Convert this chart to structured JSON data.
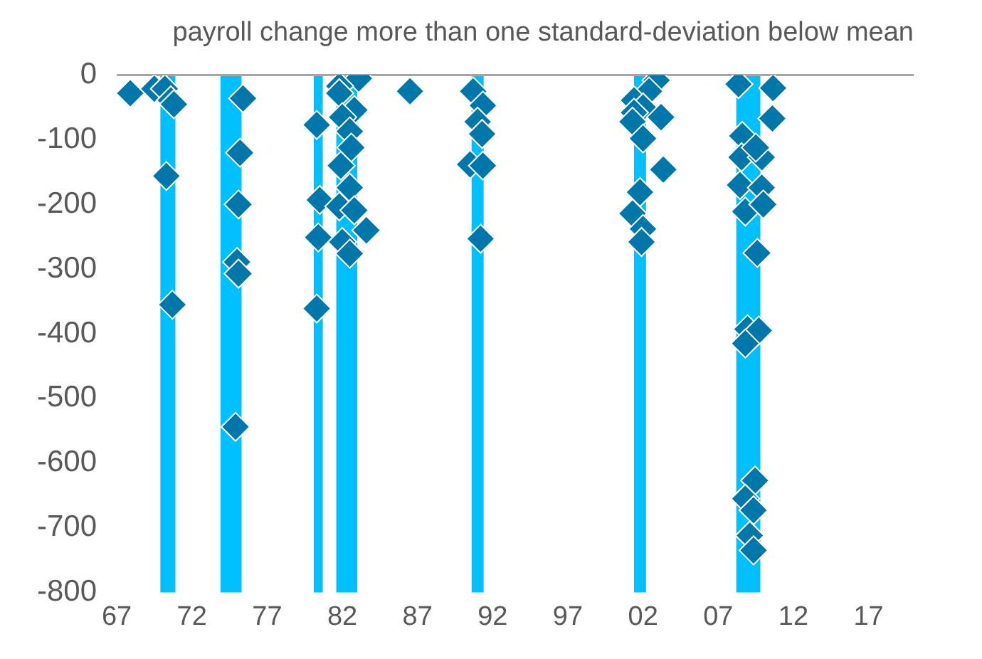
{
  "chart_data": {
    "type": "scatter",
    "title": "payroll change more than one standard-deviation below mean",
    "marker": "diamond",
    "xlim": [
      1967,
      2020
    ],
    "xticks": [
      {
        "value": 1967,
        "label": "67"
      },
      {
        "value": 1972,
        "label": "72"
      },
      {
        "value": 1977,
        "label": "77"
      },
      {
        "value": 1982,
        "label": "82"
      },
      {
        "value": 1987,
        "label": "87"
      },
      {
        "value": 1992,
        "label": "92"
      },
      {
        "value": 1997,
        "label": "97"
      },
      {
        "value": 2002,
        "label": "02"
      },
      {
        "value": 2007,
        "label": "07"
      },
      {
        "value": 2012,
        "label": "12"
      },
      {
        "value": 2017,
        "label": "17"
      }
    ],
    "ylim": [
      -800,
      0
    ],
    "yticks": [
      0,
      -100,
      -200,
      -300,
      -400,
      -500,
      -600,
      -700,
      -800
    ],
    "grid": false,
    "bands": [
      {
        "axis": "x",
        "from": 1969.9,
        "to": 1970.9,
        "color": "#00bfff"
      },
      {
        "axis": "x",
        "from": 1973.9,
        "to": 1975.3,
        "color": "#00bfff"
      },
      {
        "axis": "x",
        "from": 1980.1,
        "to": 1980.7,
        "color": "#00bfff"
      },
      {
        "axis": "x",
        "from": 1981.6,
        "to": 1983.0,
        "color": "#00bfff"
      },
      {
        "axis": "x",
        "from": 1990.6,
        "to": 1991.4,
        "color": "#00bfff"
      },
      {
        "axis": "x",
        "from": 2001.4,
        "to": 2002.2,
        "color": "#00bfff"
      },
      {
        "axis": "x",
        "from": 2008.2,
        "to": 2009.8,
        "color": "#00bfff"
      }
    ],
    "ref_lines": [
      {
        "axis": "y",
        "value": 0,
        "color": "#a6a6a6"
      }
    ],
    "series": [
      {
        "color": "#0077aa",
        "x": [
          1967.9,
          1969.5,
          1970.2,
          1970.6,
          1970.8,
          1970.3,
          1970.7,
          1975.4,
          1975.2,
          1975.1,
          1975.0,
          1975.1,
          1974.9,
          1980.3,
          1980.5,
          1980.4,
          1980.3,
          1983.1,
          1981.8,
          1981.8,
          1982.8,
          1982.0,
          1982.5,
          1982.6,
          1981.9,
          1982.5,
          1981.8,
          1982.8,
          1983.6,
          1982.0,
          1982.5,
          1986.5,
          1990.7,
          1991.35,
          1991.0,
          1991.3,
          1990.5,
          1991.35,
          1991.2,
          2002.9,
          2002.4,
          2001.4,
          2002.0,
          2001.4,
          2003.2,
          2001.3,
          2002.0,
          2003.35,
          2001.8,
          2001.3,
          2002.0,
          2001.9,
          2008.35,
          2010.65,
          2010.6,
          2008.6,
          2008.55,
          2009.9,
          2009.5,
          2008.45,
          2009.9,
          2008.8,
          2010.0,
          2009.6,
          2008.95,
          2009.7,
          2008.8,
          2009.45,
          2008.8,
          2009.35,
          2009.1,
          2009.35
        ],
        "values": [
          -28,
          -21,
          -21,
          -39,
          -45,
          -156,
          -355,
          -36,
          -120,
          -200,
          -289,
          -307,
          -544,
          -77,
          -193,
          -251,
          -361,
          -5,
          -17,
          -28,
          -54,
          -65,
          -87,
          -112,
          -140,
          -174,
          -203,
          -209,
          -240,
          -258,
          -276,
          -25,
          -25,
          -47,
          -72,
          -91,
          -138,
          -140,
          -253,
          -8,
          -25,
          -39,
          -50,
          -58,
          -65,
          -72,
          -98,
          -146,
          -181,
          -214,
          -238,
          -258,
          -14,
          -20,
          -67,
          -94,
          -127,
          -127,
          -112,
          -170,
          -174,
          -211,
          -200,
          -275,
          -393,
          -395,
          -415,
          -627,
          -655,
          -673,
          -712,
          -735
        ]
      }
    ]
  }
}
